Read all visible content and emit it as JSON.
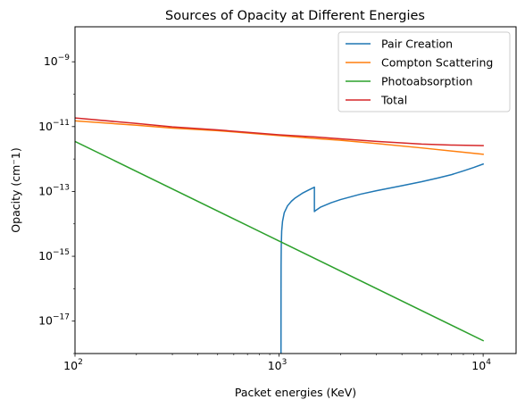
{
  "chart_data": {
    "type": "line",
    "title": "Sources of Opacity at Different Energies",
    "xlabel": "Packet energies (KeV)",
    "ylabel": "Opacity (cm$^-1$)",
    "ylabel_display": "Opacity (cm⁻1)",
    "x_scale": "log",
    "y_scale": "log",
    "xlim": [
      100,
      14500
    ],
    "ylim": [
      1e-18,
      1.2e-08
    ],
    "x_ticks": [
      {
        "value": 100,
        "base": "10",
        "exp": "2"
      },
      {
        "value": 1000,
        "base": "10",
        "exp": "3"
      },
      {
        "value": 10000,
        "base": "10",
        "exp": "4"
      }
    ],
    "y_ticks": [
      {
        "value": 1e-17,
        "base": "10",
        "exp": "−17"
      },
      {
        "value": 1e-15,
        "base": "10",
        "exp": "−15"
      },
      {
        "value": 1e-13,
        "base": "10",
        "exp": "−13"
      },
      {
        "value": 1e-11,
        "base": "10",
        "exp": "−11"
      },
      {
        "value": 1e-09,
        "base": "10",
        "exp": "−9"
      }
    ],
    "grid": false,
    "legend_position": "top-right",
    "series": [
      {
        "name": "Pair Creation",
        "color": "#1f77b4",
        "points": [
          [
            1022,
            1e-18
          ],
          [
            1022.5,
            1e-16
          ],
          [
            1023,
            5e-16
          ],
          [
            1025,
            2e-15
          ],
          [
            1030,
            6e-15
          ],
          [
            1040,
            1.2e-14
          ],
          [
            1060,
            2.2e-14
          ],
          [
            1100,
            3.6e-14
          ],
          [
            1150,
            5e-14
          ],
          [
            1200,
            6.3e-14
          ],
          [
            1300,
            8.8e-14
          ],
          [
            1400,
            1.12e-13
          ],
          [
            1490,
            1.35e-13
          ],
          [
            1490,
            2.4e-14
          ],
          [
            1500,
            2.5e-14
          ],
          [
            1600,
            3.3e-14
          ],
          [
            1800,
            4.5e-14
          ],
          [
            2000,
            5.6e-14
          ],
          [
            2500,
            8.2e-14
          ],
          [
            3000,
            1.05e-13
          ],
          [
            4000,
            1.5e-13
          ],
          [
            5000,
            2e-13
          ],
          [
            6000,
            2.6e-13
          ],
          [
            7000,
            3.3e-13
          ],
          [
            8000,
            4.3e-13
          ],
          [
            9000,
            5.5e-13
          ],
          [
            10000,
            7e-13
          ]
        ]
      },
      {
        "name": "Compton Scattering",
        "color": "#ff7f0e",
        "points": [
          [
            100,
            1.5e-11
          ],
          [
            200,
            1.1e-11
          ],
          [
            300,
            9e-12
          ],
          [
            500,
            7.5e-12
          ],
          [
            1000,
            5.3e-12
          ],
          [
            1500,
            4.3e-12
          ],
          [
            2000,
            3.8e-12
          ],
          [
            3000,
            3e-12
          ],
          [
            5000,
            2.2e-12
          ],
          [
            10000,
            1.4e-12
          ]
        ]
      },
      {
        "name": "Photoabsorption",
        "color": "#2ca02c",
        "points": [
          [
            100,
            3.5e-12
          ],
          [
            10000,
            2.5e-18
          ]
        ]
      },
      {
        "name": "Total",
        "color": "#d62728",
        "points": [
          [
            100,
            1.85e-11
          ],
          [
            200,
            1.25e-11
          ],
          [
            300,
            9.8e-12
          ],
          [
            500,
            7.9e-12
          ],
          [
            1000,
            5.6e-12
          ],
          [
            1500,
            4.8e-12
          ],
          [
            2000,
            4.2e-12
          ],
          [
            3000,
            3.5e-12
          ],
          [
            5000,
            2.9e-12
          ],
          [
            7000,
            2.7e-12
          ],
          [
            10000,
            2.6e-12
          ]
        ]
      }
    ]
  }
}
